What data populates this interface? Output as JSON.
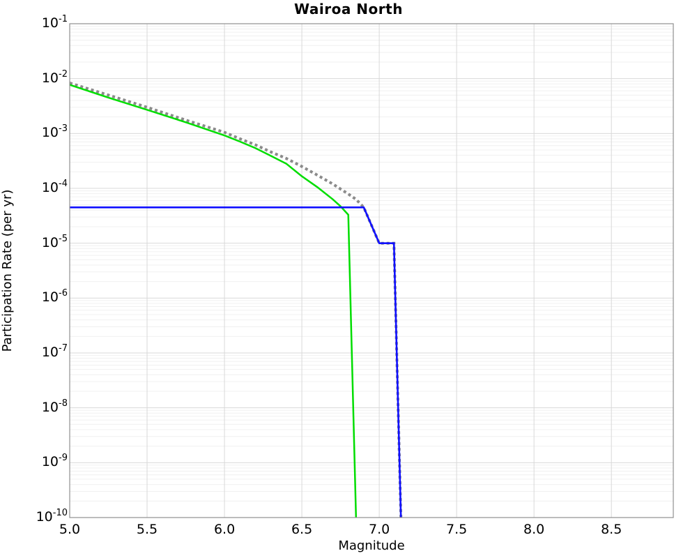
{
  "chart_data": {
    "type": "line",
    "title": "Wairoa North",
    "xlabel": "Magnitude",
    "ylabel": "Participation Rate (per yr)",
    "xlim": [
      5.0,
      8.9
    ],
    "ylim": [
      1e-10,
      0.1
    ],
    "y_scale": "log",
    "grid": "major and minor log gridlines on, no legend",
    "x_ticks": [
      "5.0",
      "5.5",
      "6.0",
      "6.5",
      "7.0",
      "7.5",
      "8.0",
      "8.5"
    ],
    "x_tick_values": [
      5.0,
      5.5,
      6.0,
      6.5,
      7.0,
      7.5,
      8.0,
      8.5
    ],
    "y_tick_base": "10",
    "y_tick_exponents": [
      "-1",
      "-2",
      "-3",
      "-4",
      "-5",
      "-6",
      "-7",
      "-8",
      "-9",
      "-10"
    ],
    "colors": {
      "background": "#ffffff",
      "frame": "#8f8f8f",
      "grid_major": "#d9d9d9",
      "grid_minor": "#f0f0f0",
      "gray_series": "#8a8a8a",
      "green_series": "#00dd00",
      "blue_series": "#1010ff"
    },
    "series": [
      {
        "name": "gray-dotted-curve",
        "color": "#8a8a8a",
        "style": "dotted",
        "width": 4,
        "points": [
          [
            5.0,
            0.0083
          ],
          [
            5.25,
            0.005
          ],
          [
            5.5,
            0.003
          ],
          [
            5.75,
            0.00175
          ],
          [
            6.0,
            0.00105
          ],
          [
            6.1,
            0.0008
          ],
          [
            6.2,
            0.00062
          ],
          [
            6.3,
            0.00046
          ],
          [
            6.4,
            0.00035
          ],
          [
            6.5,
            0.00025
          ],
          [
            6.6,
            0.000174
          ],
          [
            6.7,
            0.00012
          ],
          [
            6.8,
            7.9e-05
          ],
          [
            6.85,
            6.3e-05
          ],
          [
            6.9,
            4.5e-05
          ],
          [
            7.0,
            1e-05
          ],
          [
            7.095,
            1e-05
          ],
          [
            7.14,
            1e-10
          ]
        ]
      },
      {
        "name": "green-solid-curve",
        "color": "#00dd00",
        "style": "solid",
        "width": 2.5,
        "points": [
          [
            5.0,
            0.0077
          ],
          [
            5.25,
            0.0045
          ],
          [
            5.5,
            0.0027
          ],
          [
            5.75,
            0.0016
          ],
          [
            6.0,
            0.00092
          ],
          [
            6.1,
            0.00071
          ],
          [
            6.2,
            0.00054
          ],
          [
            6.3,
            0.00039
          ],
          [
            6.4,
            0.00028
          ],
          [
            6.5,
            0.000166
          ],
          [
            6.6,
            0.000105
          ],
          [
            6.7,
            6.3e-05
          ],
          [
            6.75,
            4.7e-05
          ],
          [
            6.78,
            3.8e-05
          ],
          [
            6.8,
            3.3e-05
          ],
          [
            6.85,
            1e-10
          ]
        ]
      },
      {
        "name": "blue-stepped-line",
        "color": "#1010ff",
        "style": "solid",
        "width": 2.6,
        "points": [
          [
            5.0,
            4.5e-05
          ],
          [
            6.9,
            4.5e-05
          ],
          [
            7.0,
            1e-05
          ],
          [
            7.095,
            1e-05
          ],
          [
            7.14,
            1e-10
          ]
        ]
      }
    ]
  }
}
